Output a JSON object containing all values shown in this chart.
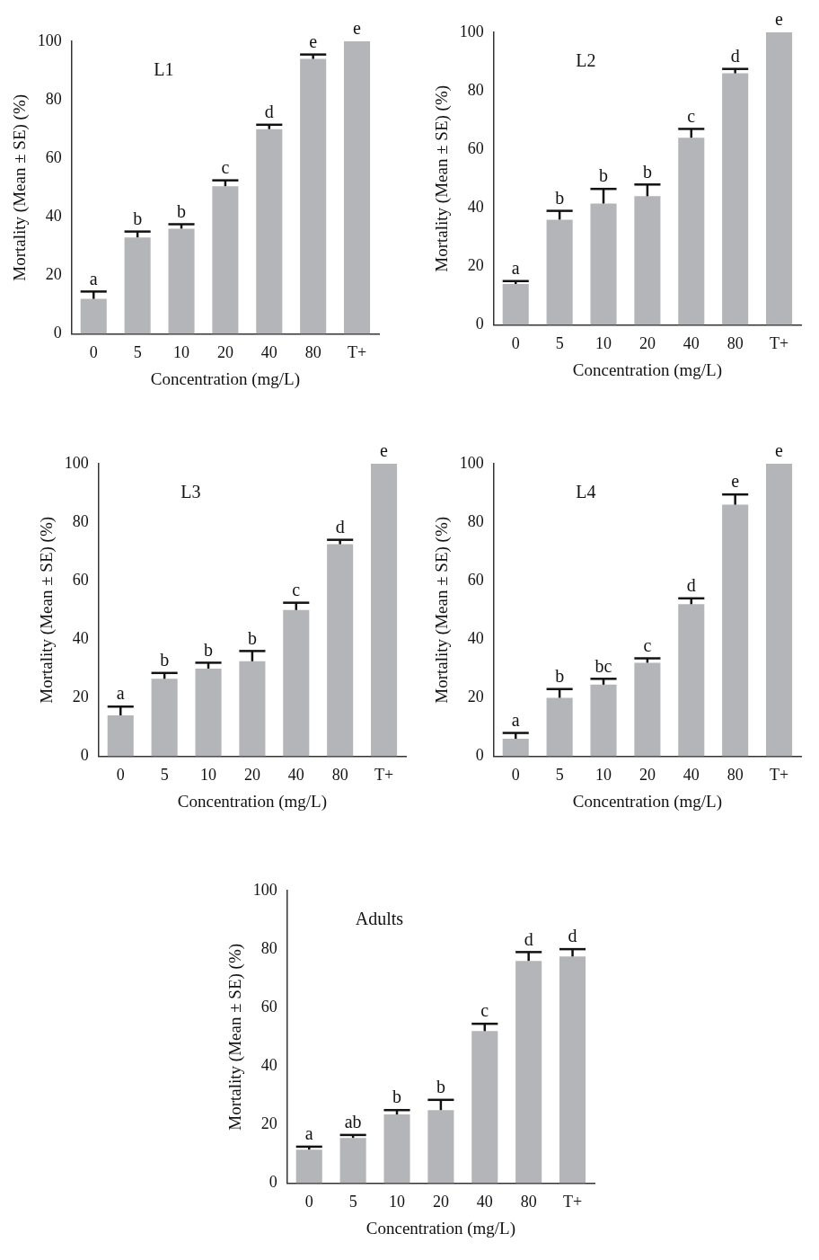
{
  "chart_data": [
    {
      "type": "bar",
      "title": "L1",
      "xlabel": "Concentration (mg/L)",
      "ylabel": "Mortality (Mean ± SE) (%)",
      "categories": [
        "0",
        "5",
        "10",
        "20",
        "40",
        "80",
        "T+"
      ],
      "values": [
        12,
        33,
        36,
        50.5,
        70,
        94,
        100
      ],
      "errors": [
        [
          12,
          14.5
        ],
        [
          33,
          35
        ],
        [
          36,
          37.5
        ],
        [
          50.5,
          52.5
        ],
        [
          70,
          71.5
        ],
        [
          94,
          95.5
        ],
        null
      ],
      "color": "#b4b5b9",
      "ylim": [
        0,
        100
      ],
      "yticks": [
        0,
        20,
        40,
        60,
        80,
        100
      ],
      "grid": false,
      "legend": false,
      "annotations": [
        {
          "text": "a",
          "x": "0",
          "y": 14.5
        },
        {
          "text": "b",
          "x": "5",
          "y": 35
        },
        {
          "text": "b",
          "x": "10",
          "y": 37.5
        },
        {
          "text": "c",
          "x": "20",
          "y": 52.5
        },
        {
          "text": "d",
          "x": "40",
          "y": 71.5
        },
        {
          "text": "e",
          "x": "80",
          "y": 95.5
        },
        {
          "text": "e",
          "x": "T+",
          "y": 100
        }
      ]
    },
    {
      "type": "bar",
      "title": "L2",
      "xlabel": "Concentration (mg/L)",
      "ylabel": "Mortality (Mean ± SE) (%)",
      "categories": [
        "0",
        "5",
        "10",
        "20",
        "40",
        "80",
        "T+"
      ],
      "values": [
        14,
        36,
        41.5,
        44,
        64,
        86,
        100
      ],
      "errors": [
        [
          14,
          15
        ],
        [
          36,
          39
        ],
        [
          41.5,
          46.5
        ],
        [
          44,
          48
        ],
        [
          64,
          67
        ],
        [
          86,
          87.5
        ],
        null
      ],
      "color": "#b4b5b9",
      "ylim": [
        0,
        100
      ],
      "yticks": [
        0,
        20,
        40,
        60,
        80,
        100
      ],
      "grid": false,
      "legend": false,
      "annotations": [
        {
          "text": "a",
          "x": "0",
          "y": 15
        },
        {
          "text": "b",
          "x": "5",
          "y": 39
        },
        {
          "text": "b",
          "x": "10",
          "y": 46.5
        },
        {
          "text": "b",
          "x": "20",
          "y": 48
        },
        {
          "text": "c",
          "x": "40",
          "y": 67
        },
        {
          "text": "d",
          "x": "80",
          "y": 87.5
        },
        {
          "text": "e",
          "x": "T+",
          "y": 100
        }
      ]
    },
    {
      "type": "bar",
      "title": "L3",
      "xlabel": "Concentration (mg/L)",
      "ylabel": "Mortality (Mean ± SE) (%)",
      "categories": [
        "0",
        "5",
        "10",
        "20",
        "40",
        "80",
        "T+"
      ],
      "values": [
        14,
        26.5,
        30,
        32.5,
        50,
        72.5,
        100
      ],
      "errors": [
        [
          14,
          17
        ],
        [
          26.5,
          28.5
        ],
        [
          30,
          32
        ],
        [
          32.5,
          36
        ],
        [
          50,
          52.5
        ],
        [
          72.5,
          74
        ],
        null
      ],
      "color": "#b4b5b9",
      "ylim": [
        0,
        100
      ],
      "yticks": [
        0,
        20,
        40,
        60,
        80,
        100
      ],
      "grid": false,
      "legend": false,
      "annotations": [
        {
          "text": "a",
          "x": "0",
          "y": 17
        },
        {
          "text": "b",
          "x": "5",
          "y": 28.5
        },
        {
          "text": "b",
          "x": "10",
          "y": 32
        },
        {
          "text": "b",
          "x": "20",
          "y": 36
        },
        {
          "text": "c",
          "x": "40",
          "y": 52.5
        },
        {
          "text": "d",
          "x": "80",
          "y": 74
        },
        {
          "text": "e",
          "x": "T+",
          "y": 100
        }
      ]
    },
    {
      "type": "bar",
      "title": "L4",
      "xlabel": "Concentration (mg/L)",
      "ylabel": "Mortality (Mean ± SE) (%)",
      "categories": [
        "0",
        "5",
        "10",
        "20",
        "40",
        "80",
        "T+"
      ],
      "values": [
        6,
        20,
        24.5,
        32,
        52,
        86,
        100
      ],
      "errors": [
        [
          6,
          8
        ],
        [
          20,
          23
        ],
        [
          24.5,
          26.5
        ],
        [
          32,
          33.5
        ],
        [
          52,
          54
        ],
        [
          86,
          89.5
        ],
        null
      ],
      "color": "#b4b5b9",
      "ylim": [
        0,
        100
      ],
      "yticks": [
        0,
        20,
        40,
        60,
        80,
        100
      ],
      "grid": false,
      "legend": false,
      "annotations": [
        {
          "text": "a",
          "x": "0",
          "y": 8
        },
        {
          "text": "b",
          "x": "5",
          "y": 23
        },
        {
          "text": "bc",
          "x": "10",
          "y": 26.5
        },
        {
          "text": "c",
          "x": "20",
          "y": 33.5
        },
        {
          "text": "d",
          "x": "40",
          "y": 54
        },
        {
          "text": "e",
          "x": "80",
          "y": 89.5
        },
        {
          "text": "e",
          "x": "T+",
          "y": 100
        }
      ]
    },
    {
      "type": "bar",
      "title": "Adults",
      "xlabel": "Concentration (mg/L)",
      "ylabel": "Mortality (Mean ± SE) (%)",
      "categories": [
        "0",
        "5",
        "10",
        "20",
        "40",
        "80",
        "T+"
      ],
      "values": [
        11.5,
        15.5,
        23.5,
        25,
        52,
        76,
        77.5
      ],
      "errors": [
        [
          11.5,
          12.5
        ],
        [
          15.5,
          16.5
        ],
        [
          23.5,
          25
        ],
        [
          25,
          28.5
        ],
        [
          52,
          54.5
        ],
        [
          76,
          79
        ],
        [
          77.5,
          80
        ]
      ],
      "color": "#b4b5b9",
      "ylim": [
        0,
        100
      ],
      "yticks": [
        0,
        20,
        40,
        60,
        80,
        100
      ],
      "grid": false,
      "legend": false,
      "annotations": [
        {
          "text": "a",
          "x": "0",
          "y": 12.5
        },
        {
          "text": "ab",
          "x": "5",
          "y": 16.5
        },
        {
          "text": "b",
          "x": "10",
          "y": 25
        },
        {
          "text": "b",
          "x": "20",
          "y": 28.5
        },
        {
          "text": "c",
          "x": "40",
          "y": 54.5
        },
        {
          "text": "d",
          "x": "80",
          "y": 79
        },
        {
          "text": "d",
          "x": "T+",
          "y": 80
        }
      ]
    }
  ]
}
